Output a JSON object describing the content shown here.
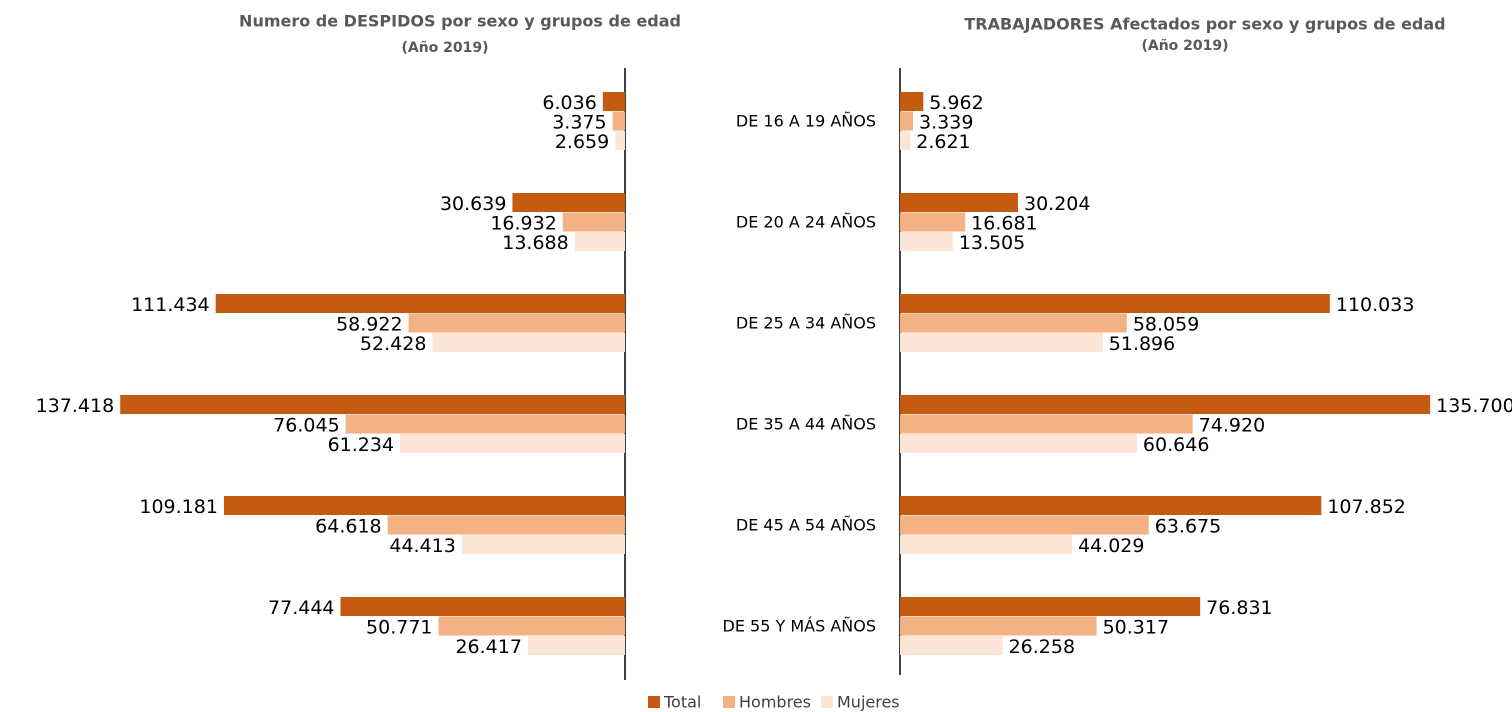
{
  "chart_data": [
    {
      "type": "bar",
      "orientation": "horizontal",
      "direction": "left",
      "title": "Numero de DESPIDOS  por sexo y grupos de edad",
      "subtitle": "(Año 2019)",
      "categories": [
        "DE 16 A 19 AÑOS",
        "DE 20 A 24 AÑOS",
        "DE 25 A 34 AÑOS",
        "DE 35 A 44 AÑOS",
        "DE 45 A 54 AÑOS",
        "DE 55 Y MÁS AÑOS"
      ],
      "xlim": [
        0,
        150000
      ],
      "series": [
        {
          "name": "Total",
          "color": "#c55a11",
          "values": [
            6036,
            30639,
            111434,
            137418,
            109181,
            77444
          ],
          "value_labels": [
            "6.036",
            "30.639",
            "111.434",
            "137.418",
            "109.181",
            "77.444"
          ]
        },
        {
          "name": "Hombres",
          "color": "#f4b183",
          "values": [
            3375,
            16932,
            58922,
            76045,
            64618,
            50771
          ],
          "value_labels": [
            "3.375",
            "16.932",
            "58.922",
            "76.045",
            "64.618",
            "50.771"
          ]
        },
        {
          "name": "Mujeres",
          "color": "#fbe5d6",
          "values": [
            2659,
            13688,
            52428,
            61234,
            44413,
            26417
          ],
          "value_labels": [
            "2.659",
            "13.688",
            "52.428",
            "61.234",
            "44.413",
            "26.417"
          ]
        }
      ]
    },
    {
      "type": "bar",
      "orientation": "horizontal",
      "direction": "right",
      "title": "TRABAJADORES   Afectados por sexo y grupos de edad",
      "subtitle": "(Año 2019)",
      "xlim": [
        0,
        150000
      ],
      "series": [
        {
          "color": "#c55a11",
          "values": [
            5962,
            30204,
            110033,
            135700,
            107852,
            76831
          ],
          "value_labels": [
            "5.962",
            "30.204",
            "110.033",
            "135.700",
            "107.852",
            "76.831"
          ]
        },
        {
          "color": "#f4b183",
          "values": [
            3339,
            16681,
            58059,
            74920,
            63675,
            50317
          ],
          "value_labels": [
            "3.339",
            "16.681",
            "58.059",
            "74.920",
            "63.675",
            "50.317"
          ]
        },
        {
          "color": "#fbe5d6",
          "values": [
            2621,
            13505,
            51896,
            60646,
            44029,
            26258
          ],
          "value_labels": [
            "2.621",
            "13.505",
            "51.896",
            "60.646",
            "44.029",
            "26.258"
          ]
        }
      ]
    }
  ]
}
